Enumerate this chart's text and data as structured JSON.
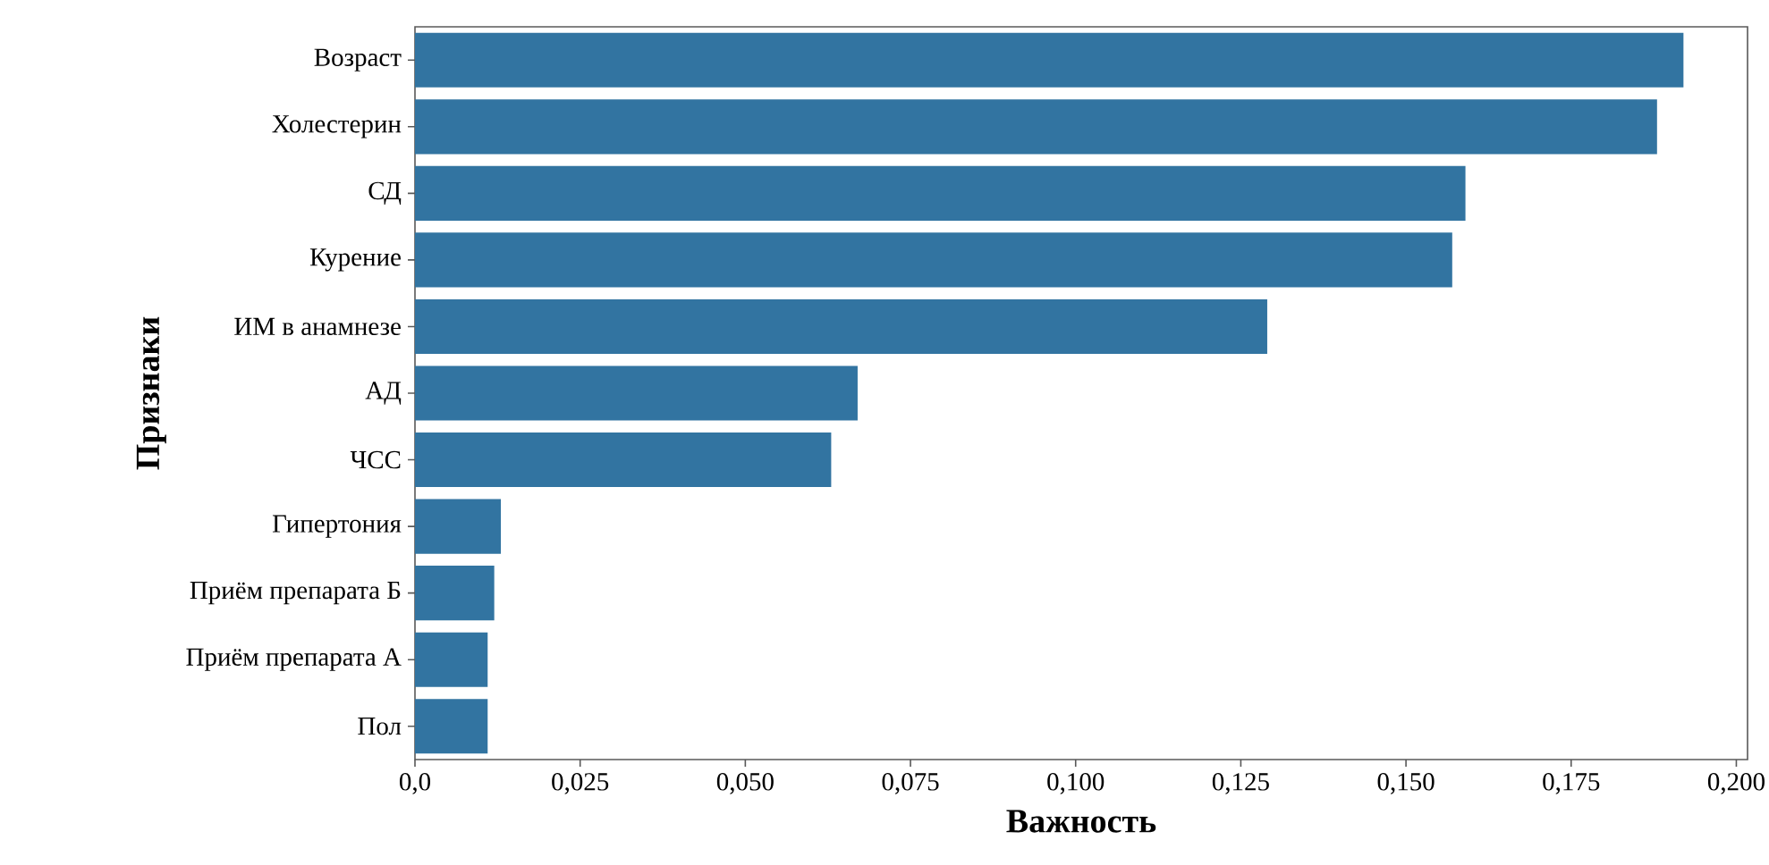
{
  "chart_data": {
    "type": "bar",
    "orientation": "horizontal",
    "xlabel": "Важность",
    "ylabel": "Признаки",
    "categories": [
      "Возраст",
      "Холестерин",
      "СД",
      "Курение",
      "ИМ в анамнезе",
      "АД",
      "ЧСС",
      "Гипертония",
      "Приём препарата Б",
      "Приём препарата А",
      "Пол"
    ],
    "values": [
      0.192,
      0.188,
      0.159,
      0.157,
      0.129,
      0.067,
      0.063,
      0.013,
      0.012,
      0.011,
      0.011
    ],
    "color": "#3274a1",
    "xlim": [
      0,
      0.2017
    ],
    "xticks": [
      {
        "value": 0,
        "label": "0,0"
      },
      {
        "value": 0.025,
        "label": "0,025"
      },
      {
        "value": 0.05,
        "label": "0,050"
      },
      {
        "value": 0.075,
        "label": "0,075"
      },
      {
        "value": 0.1,
        "label": "0,100"
      },
      {
        "value": 0.125,
        "label": "0,125"
      },
      {
        "value": 0.15,
        "label": "0,150"
      },
      {
        "value": 0.175,
        "label": "0,175"
      },
      {
        "value": 0.2,
        "label": "0,200"
      }
    ]
  }
}
